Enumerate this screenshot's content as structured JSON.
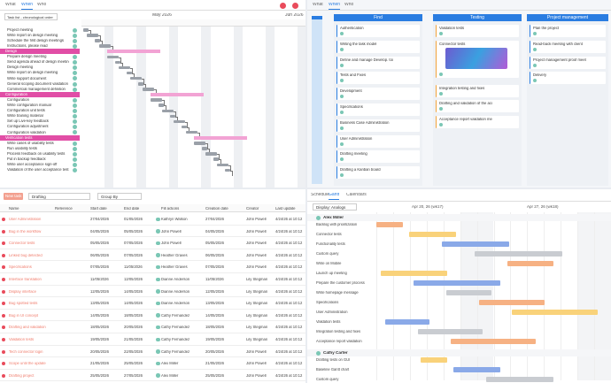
{
  "gantt": {
    "tabs": [
      "What",
      "When",
      "Who"
    ],
    "sort": "Task list - chronological order",
    "months": [
      "May 2026",
      "Jun 2026"
    ],
    "tasks": [
      "Project meeting",
      "Write report on design meeting",
      "Schedule the first design meetings",
      "Instructions, please read"
    ],
    "sections": [
      {
        "title": "Design",
        "tasks": [
          "Prepare design meeting",
          "Send agenda ahead of design meeting",
          "Design meeting",
          "Write report on design meeting",
          "Write support document",
          "General scoping document validation",
          "Commercial management definition"
        ]
      },
      {
        "title": "Configuration",
        "tasks": [
          "Configuration",
          "Write configuration manual",
          "Configuration unit tests",
          "Write training material",
          "Set up Live-key feedback",
          "Configuration adjustment",
          "Configuration validation"
        ]
      },
      {
        "title": "Verification tests",
        "tasks": [
          "Write cases of usability tests",
          "Run usability tests",
          "Process feedback on usability tests",
          "Put in backup feedback",
          "Write user acceptance sign-off",
          "Validation of the user acceptance test"
        ]
      }
    ]
  },
  "kanban": {
    "tabs": [
      "What",
      "When",
      "Who"
    ],
    "columns": [
      {
        "title": "Find",
        "cards": [
          "Authentication",
          "Writing the task model",
          "Define and manage Develop. tool",
          "Tests and Fixes",
          "Development",
          "Specifications",
          "Business Case Administration",
          "User Administration",
          "Drafting meeting",
          "Drafting a Kanban board"
        ]
      },
      {
        "title": "Testing",
        "cards": [
          "Validation tests",
          "Connector tests",
          "Integration testing and fixes",
          "Drafting and validation of the acceptance report",
          "Acceptance report validation meeting"
        ]
      },
      {
        "title": "Project management",
        "cards": [
          "Plan the project",
          "Read-back meeting with client",
          "Project management proof meeting",
          "Delivery"
        ]
      }
    ]
  },
  "table": {
    "new_task": "New task",
    "filter": "Drafting",
    "group": "Group By",
    "headers": [
      "Name",
      "Reference",
      "Start date",
      "End date",
      "Fill actions",
      "Creation date",
      "Creator",
      "Last update"
    ],
    "rows": [
      [
        "User Administration",
        "",
        "27/04/2026",
        "01/05/2026",
        "Kathryn Watson",
        "27/04/2026",
        "John Powell",
        "4/24/26 at 10:12"
      ],
      [
        "Bug in the workflow",
        "",
        "04/05/2026",
        "05/05/2026",
        "John Powell",
        "04/05/2026",
        "John Powell",
        "4/24/26 at 10:12"
      ],
      [
        "Connector tests",
        "",
        "05/05/2026",
        "07/05/2026",
        "John Powell",
        "05/05/2026",
        "John Powell",
        "4/24/26 at 10:12"
      ],
      [
        "Linked bug detected",
        "",
        "06/05/2026",
        "07/05/2026",
        "Heather Graves",
        "06/05/2026",
        "John Powell",
        "4/24/26 at 10:12"
      ],
      [
        "Specifications",
        "",
        "07/05/2026",
        "11/05/2026",
        "Heather Graves",
        "07/05/2026",
        "John Powell",
        "4/24/26 at 10:12"
      ],
      [
        "Interface translation",
        "",
        "11/05/2026",
        "12/05/2026",
        "Dianne Anderson",
        "11/05/2026",
        "Lily Stegman",
        "4/24/26 at 10:12"
      ],
      [
        "Display interface",
        "",
        "12/05/2026",
        "14/05/2026",
        "Dianne Anderson",
        "12/05/2026",
        "Lily Stegman",
        "4/24/26 at 10:12"
      ],
      [
        "Bug spotted tests",
        "",
        "13/05/2026",
        "14/05/2026",
        "Dianne Anderson",
        "13/05/2026",
        "Lily Stegman",
        "4/24/26 at 10:12"
      ],
      [
        "Bug in UI concept",
        "",
        "14/05/2026",
        "18/05/2026",
        "Cathy Fernandez",
        "14/05/2026",
        "Lily Stegman",
        "4/24/26 at 10:12"
      ],
      [
        "Drafting and validation",
        "",
        "18/05/2026",
        "20/05/2026",
        "Cathy Fernandez",
        "18/05/2026",
        "Lily Stegman",
        "4/24/26 at 10:12"
      ],
      [
        "Validation tests",
        "",
        "19/05/2026",
        "21/05/2026",
        "Cathy Fernandez",
        "19/05/2026",
        "Lily Stegman",
        "4/24/26 at 10:12"
      ],
      [
        "Tech connector login",
        "",
        "20/05/2026",
        "22/05/2026",
        "Cathy Fernandez",
        "20/05/2026",
        "John Powell",
        "4/24/26 at 10:12"
      ],
      [
        "Scope until the update",
        "",
        "21/05/2026",
        "25/05/2026",
        "Alex Miller",
        "21/05/2026",
        "John Powell",
        "4/24/26 at 10:12"
      ],
      [
        "Drafting project",
        "",
        "25/05/2026",
        "27/05/2026",
        "Alex Miller",
        "25/05/2026",
        "John Powell",
        "4/24/26 at 10:12"
      ]
    ]
  },
  "schedule": {
    "tabs": [
      "Schedule",
      "Gantt",
      "Calendars"
    ],
    "display": "Display: Analogs",
    "weeks": [
      "Apr 20, 26 (wk17)",
      "Apr 27, 26 (wk18)"
    ],
    "people": [
      {
        "name": "Alex Miller",
        "tasks": [
          "Backlog with prioritization",
          "Connector tests",
          "Functionality tests",
          "Custom query",
          "Write on Mobile",
          "Launch up meeting",
          "Prepare the customer process",
          "Write homepage message",
          "Specifications",
          "User Administration",
          "Validation tests",
          "Integration testing and fixes",
          "Acceptance report validation"
        ]
      },
      {
        "name": "Cathy Carter",
        "tasks": [
          "Drafting tests on GUI",
          "Baseline Gantt chart",
          "Custom query"
        ]
      }
    ]
  }
}
